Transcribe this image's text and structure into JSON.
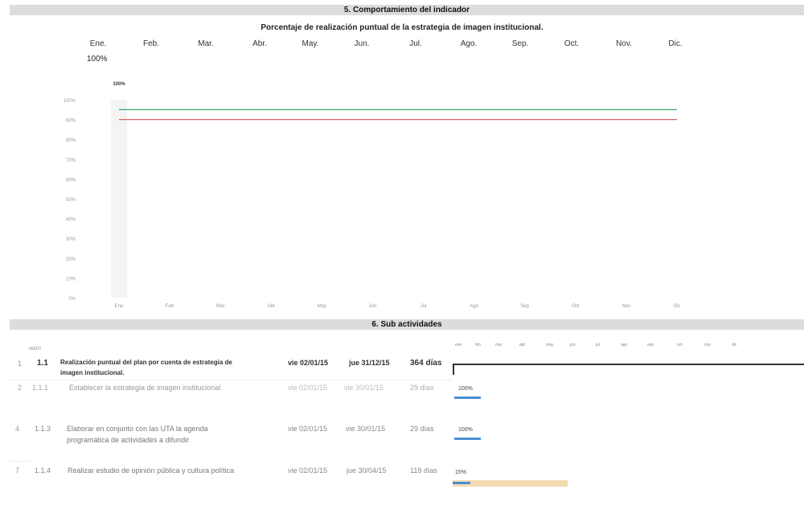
{
  "section5": {
    "title": "5. Comportamiento del indicador"
  },
  "indicator": {
    "title": "Porcentaje de realización puntual de la estrategia de imagen institucional.",
    "months": [
      "Ene.",
      "Feb.",
      "Mar.",
      "Abr.",
      "May.",
      "Jun.",
      "Jul.",
      "Ago.",
      "Sep.",
      "Oct.",
      "Nov.",
      "Dic."
    ],
    "january_value": "100%"
  },
  "chart_data": {
    "type": "line",
    "categories": [
      "Ene",
      "Feb",
      "Mar",
      "Abr",
      "May",
      "Jun",
      "Jul",
      "Ago",
      "Sep",
      "Oct",
      "Nov",
      "Dic"
    ],
    "y_ticks": [
      "0%",
      "10%",
      "20%",
      "30%",
      "40%",
      "50%",
      "60%",
      "70%",
      "80%",
      "90%",
      "100%"
    ],
    "ylim": [
      0,
      100
    ],
    "series": [
      {
        "color": "#3cb371",
        "values": [
          95,
          95,
          95,
          95,
          95,
          95,
          95,
          95,
          95,
          95,
          95,
          95
        ]
      },
      {
        "color": "#e06060",
        "values": [
          90,
          90,
          90,
          90,
          90,
          90,
          90,
          90,
          90,
          90,
          90,
          90
        ]
      }
    ],
    "bar_values": [
      100,
      null,
      null,
      null,
      null,
      null,
      null,
      null,
      null,
      null,
      null,
      null
    ],
    "data_labels": [
      {
        "category": "Ene",
        "text": "100%"
      }
    ],
    "grid": false,
    "legend": "none"
  },
  "section6": {
    "title": "6. Sub actividades"
  },
  "gantt": {
    "id_header": "Id/EDT",
    "months": [
      "ene",
      "feb",
      "mar",
      "abr",
      "may",
      "jun",
      "jul",
      "ago",
      "sep",
      "oct",
      "nov",
      "dic"
    ],
    "rows": [
      {
        "num": "1",
        "wbs": "1.1",
        "name_line1": "Realización puntual del plan por cuenta de estrategia de",
        "name_line2": "imagen institucional.",
        "start": "vie 02/01/15",
        "end": "jue 31/12/15",
        "duration": "364 días",
        "summary": true,
        "percent": "",
        "progress": 1.0
      },
      {
        "num": "2",
        "wbs": "1.1.1",
        "name_line1": "Establecer la estrategia de imagen institucional",
        "name_line2": "",
        "start": "vie 02/01/15",
        "end": "vie 30/01/15",
        "duration": "29 días",
        "summary": false,
        "percent": "100%",
        "progress": 1.0
      },
      {
        "num": "4",
        "wbs": "1.1.3",
        "name_line1": "Elaborar en conjunto con las UTA la agenda",
        "name_line2": "programática de actividades a difundir",
        "start": "vie 02/01/15",
        "end": "vie 30/01/15",
        "duration": "29 días",
        "summary": false,
        "percent": "100%",
        "progress": 1.0
      },
      {
        "num": "7",
        "wbs": "1.1.4",
        "name_line1": "Realizar estudio de opinión pública y cultura política",
        "name_line2": "",
        "start": "vie 02/01/15",
        "end": "jue 30/04/15",
        "duration": "119 días",
        "summary": false,
        "percent": "15%",
        "progress": 0.15
      }
    ]
  }
}
